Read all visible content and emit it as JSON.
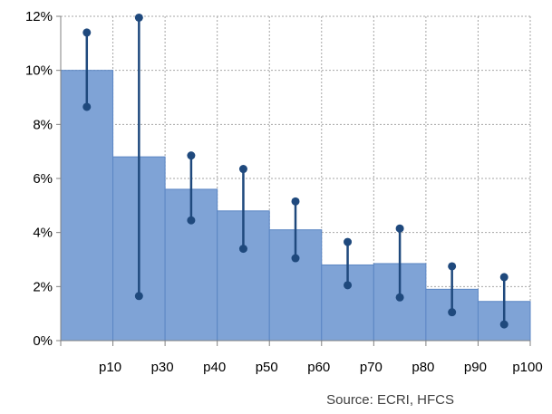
{
  "chart_data": {
    "type": "bar",
    "categories": [
      "p10",
      "p30",
      "p40",
      "p50",
      "p60",
      "p70",
      "p80",
      "p90",
      "p100"
    ],
    "series": [
      {
        "values": [
          10.0,
          6.8,
          5.6,
          4.8,
          4.1,
          2.8,
          2.85,
          1.9,
          1.45
        ]
      }
    ],
    "ranges": [
      {
        "low": 8.65,
        "high": 11.4
      },
      {
        "low": 1.65,
        "high": 11.95
      },
      {
        "low": 4.45,
        "high": 6.85
      },
      {
        "low": 3.4,
        "high": 6.35
      },
      {
        "low": 3.05,
        "high": 5.15
      },
      {
        "low": 2.05,
        "high": 3.65
      },
      {
        "low": 1.6,
        "high": 4.15
      },
      {
        "low": 1.05,
        "high": 2.75
      },
      {
        "low": 0.6,
        "high": 2.35
      }
    ],
    "xlabel": "",
    "ylabel": "",
    "ylim": [
      0,
      12
    ],
    "yticks": [
      0,
      2,
      4,
      6,
      8,
      10,
      12
    ],
    "ytick_labels": [
      "0%",
      "2%",
      "4%",
      "6%",
      "8%",
      "10%",
      "12%"
    ],
    "grid": true,
    "legend": "none",
    "colors": {
      "bar_fill": "#7fa3d6",
      "bar_edge": "#5b86c4",
      "range_marker": "#1f497d",
      "grid": "#a6a6a6",
      "axis": "#808080"
    }
  },
  "source_note": "Source: ECRI, HFCS"
}
